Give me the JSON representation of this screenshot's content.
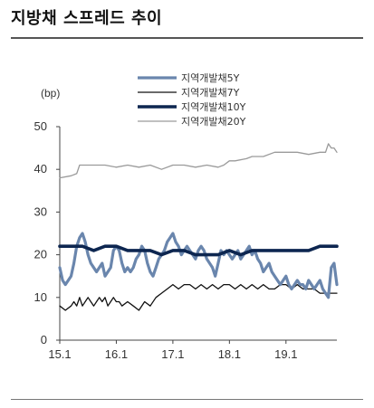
{
  "title": "지방채 스프레드 추이",
  "chart_data": {
    "type": "line",
    "title": "지방채 스프레드 추이",
    "ylabel": "(bp)",
    "xlabel": "",
    "ylim": [
      0,
      50
    ],
    "yticks": [
      0,
      10,
      20,
      30,
      40,
      50
    ],
    "xlim": [
      2015.0,
      2019.9
    ],
    "xticks": [
      {
        "label": "15.1",
        "value": 2015.0
      },
      {
        "label": "16.1",
        "value": 2016.0
      },
      {
        "label": "17.1",
        "value": 2017.0
      },
      {
        "label": "18.1",
        "value": 2018.0
      },
      {
        "label": "19.1",
        "value": 2019.0
      }
    ],
    "grid": false,
    "legend_position": "top-right",
    "series": [
      {
        "name": "지역개발채5Y",
        "color": "#6a86ad",
        "style": "thick",
        "x": [
          2015.0,
          2015.05,
          2015.1,
          2015.15,
          2015.2,
          2015.25,
          2015.3,
          2015.35,
          2015.4,
          2015.45,
          2015.5,
          2015.55,
          2015.6,
          2015.65,
          2015.7,
          2015.75,
          2015.8,
          2015.85,
          2015.9,
          2015.95,
          2016.0,
          2016.05,
          2016.1,
          2016.15,
          2016.2,
          2016.25,
          2016.3,
          2016.35,
          2016.4,
          2016.45,
          2016.5,
          2016.55,
          2016.6,
          2016.65,
          2016.7,
          2016.75,
          2016.8,
          2016.85,
          2016.9,
          2016.95,
          2017.0,
          2017.05,
          2017.1,
          2017.15,
          2017.2,
          2017.25,
          2017.3,
          2017.35,
          2017.4,
          2017.45,
          2017.5,
          2017.55,
          2017.6,
          2017.65,
          2017.7,
          2017.75,
          2017.8,
          2017.85,
          2017.9,
          2017.95,
          2018.0,
          2018.05,
          2018.1,
          2018.15,
          2018.2,
          2018.25,
          2018.3,
          2018.35,
          2018.4,
          2018.45,
          2018.5,
          2018.55,
          2018.6,
          2018.65,
          2018.7,
          2018.75,
          2018.8,
          2018.85,
          2018.9,
          2018.95,
          2019.0,
          2019.05,
          2019.1,
          2019.15,
          2019.2,
          2019.25,
          2019.3,
          2019.35,
          2019.4,
          2019.45,
          2019.5,
          2019.55,
          2019.6,
          2019.65,
          2019.7,
          2019.75,
          2019.8,
          2019.85,
          2019.9
        ],
        "values": [
          17,
          14,
          13,
          14,
          15,
          18,
          22,
          24,
          25,
          23,
          20,
          18,
          17,
          16,
          17,
          18,
          15,
          16,
          17,
          21,
          22,
          21,
          18,
          16,
          17,
          16,
          17,
          19,
          20,
          22,
          21,
          18,
          16,
          15,
          17,
          19,
          20,
          21,
          23,
          24,
          25,
          23,
          22,
          20,
          21,
          22,
          21,
          20,
          19,
          21,
          22,
          21,
          19,
          18,
          17,
          15,
          18,
          21,
          20,
          21,
          20,
          19,
          20,
          21,
          19,
          20,
          21,
          22,
          20,
          21,
          19,
          18,
          16,
          17,
          18,
          16,
          15,
          14,
          13,
          14,
          15,
          13,
          12,
          13,
          14,
          13,
          13,
          12,
          14,
          13,
          12,
          13,
          14,
          12,
          11,
          10,
          17,
          18,
          13
        ],
        "series_index": 0
      },
      {
        "name": "지역개발채7Y",
        "color": "#111111",
        "style": "thin",
        "x": [
          2015.0,
          2015.1,
          2015.2,
          2015.25,
          2015.3,
          2015.35,
          2015.4,
          2015.45,
          2015.5,
          2015.55,
          2015.6,
          2015.65,
          2015.7,
          2015.75,
          2015.8,
          2015.85,
          2015.9,
          2015.95,
          2016.0,
          2016.05,
          2016.1,
          2016.2,
          2016.3,
          2016.4,
          2016.5,
          2016.6,
          2016.7,
          2016.8,
          2016.9,
          2017.0,
          2017.1,
          2017.2,
          2017.3,
          2017.4,
          2017.5,
          2017.6,
          2017.7,
          2017.8,
          2017.9,
          2018.0,
          2018.1,
          2018.2,
          2018.3,
          2018.4,
          2018.5,
          2018.6,
          2018.7,
          2018.8,
          2018.9,
          2019.0,
          2019.1,
          2019.2,
          2019.3,
          2019.4,
          2019.5,
          2019.6,
          2019.7,
          2019.8,
          2019.9
        ],
        "values": [
          8,
          7,
          8,
          9,
          8,
          10,
          8,
          9,
          10,
          9,
          8,
          9,
          10,
          9,
          10,
          8,
          9,
          10,
          9,
          9,
          8,
          9,
          8,
          7,
          9,
          8,
          10,
          11,
          12,
          13,
          12,
          13,
          13,
          12,
          13,
          12,
          13,
          12,
          13,
          13,
          12,
          13,
          12,
          13,
          12,
          13,
          12,
          12,
          13,
          13,
          12,
          13,
          12,
          12,
          12,
          11,
          11,
          11,
          11
        ],
        "series_index": 1
      },
      {
        "name": "지역개발채10Y",
        "color": "#0d2650",
        "style": "thickest",
        "x": [
          2015.0,
          2015.2,
          2015.4,
          2015.6,
          2015.8,
          2016.0,
          2016.2,
          2016.4,
          2016.6,
          2016.8,
          2017.0,
          2017.2,
          2017.4,
          2017.6,
          2017.8,
          2018.0,
          2018.2,
          2018.4,
          2018.6,
          2018.8,
          2019.0,
          2019.2,
          2019.4,
          2019.6,
          2019.8,
          2019.9
        ],
        "values": [
          22,
          22,
          22,
          21,
          22,
          22,
          21,
          21,
          21,
          20,
          21,
          21,
          20,
          20,
          20,
          21,
          20,
          21,
          21,
          21,
          21,
          21,
          21,
          22,
          22,
          22
        ],
        "series_index": 2
      },
      {
        "name": "지역개발채20Y",
        "color": "#9a9a9a",
        "style": "thin",
        "x": [
          2015.0,
          2015.2,
          2015.3,
          2015.35,
          2015.5,
          2015.8,
          2016.0,
          2016.2,
          2016.4,
          2016.6,
          2016.8,
          2017.0,
          2017.2,
          2017.4,
          2017.6,
          2017.8,
          2017.9,
          2018.0,
          2018.1,
          2018.3,
          2018.4,
          2018.6,
          2018.8,
          2019.0,
          2019.2,
          2019.4,
          2019.6,
          2019.7,
          2019.75,
          2019.8,
          2019.85,
          2019.9
        ],
        "values": [
          38,
          38.5,
          39,
          41,
          41,
          41,
          40.5,
          41,
          40.5,
          41,
          40,
          41,
          41,
          40.5,
          41,
          40.5,
          41,
          42,
          42,
          42.5,
          43,
          43,
          44,
          44,
          44,
          43.5,
          44,
          44,
          46,
          45,
          45,
          44
        ],
        "series_index": 3
      }
    ]
  }
}
